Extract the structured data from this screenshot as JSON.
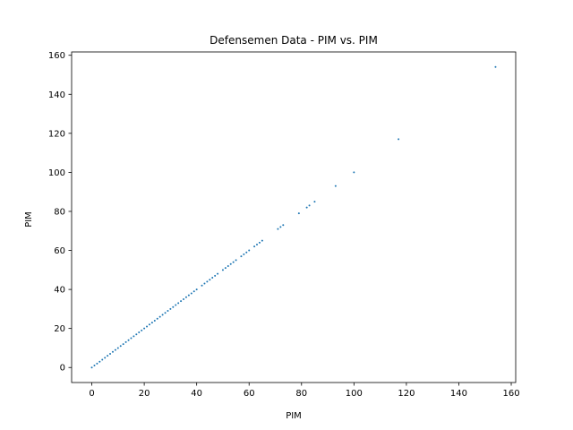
{
  "chart_data": {
    "type": "scatter",
    "title": "Defensemen Data - PIM vs. PIM",
    "xlabel": "PIM",
    "ylabel": "PIM",
    "xlim": [
      -7.7,
      161.7
    ],
    "ylim": [
      -7.7,
      161.7
    ],
    "xticks": [
      0,
      20,
      40,
      60,
      80,
      100,
      120,
      140,
      160
    ],
    "yticks": [
      0,
      20,
      40,
      60,
      80,
      100,
      120,
      140,
      160
    ],
    "grid": false,
    "marker_color": "#1f77b4",
    "series": [
      {
        "x": [
          0,
          1,
          2,
          3,
          4,
          5,
          6,
          7,
          8,
          9,
          10,
          11,
          12,
          13,
          14,
          15,
          16,
          17,
          18,
          19,
          20,
          21,
          22,
          23,
          24,
          25,
          26,
          27,
          28,
          29,
          30,
          31,
          32,
          33,
          34,
          35,
          36,
          37,
          38,
          39,
          40,
          42,
          43,
          44,
          45,
          46,
          47,
          48,
          50,
          51,
          52,
          53,
          54,
          55,
          57,
          58,
          59,
          60,
          62,
          63,
          64,
          65,
          71,
          72,
          73,
          79,
          82,
          83,
          85,
          93,
          100,
          117,
          154
        ],
        "y": [
          0,
          1,
          2,
          3,
          4,
          5,
          6,
          7,
          8,
          9,
          10,
          11,
          12,
          13,
          14,
          15,
          16,
          17,
          18,
          19,
          20,
          21,
          22,
          23,
          24,
          25,
          26,
          27,
          28,
          29,
          30,
          31,
          32,
          33,
          34,
          35,
          36,
          37,
          38,
          39,
          40,
          42,
          43,
          44,
          45,
          46,
          47,
          48,
          50,
          51,
          52,
          53,
          54,
          55,
          57,
          58,
          59,
          60,
          62,
          63,
          64,
          65,
          71,
          72,
          73,
          79,
          82,
          83,
          85,
          93,
          100,
          117,
          154
        ]
      }
    ]
  }
}
